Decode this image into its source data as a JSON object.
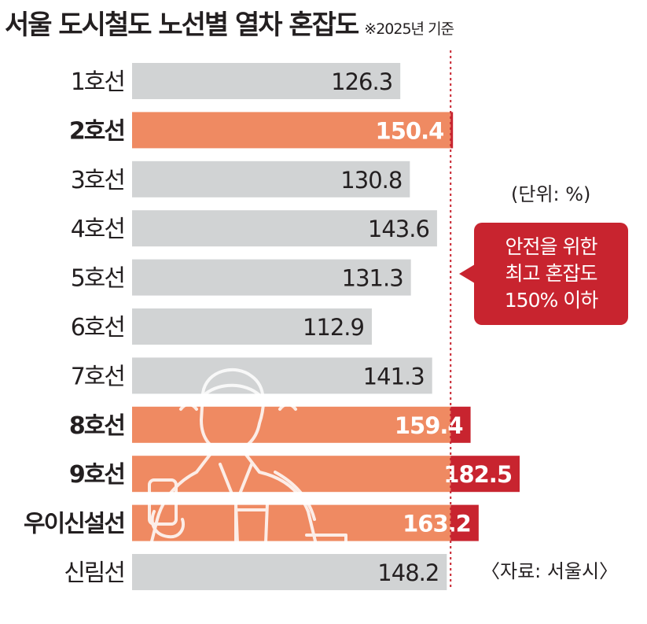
{
  "title": "서울 도시철도 노선별 열차 혼잡도",
  "subtitle": "※2025년 기준",
  "unit": "(단위: %)",
  "callout": "안전을 위한\n최고 혼잡도\n150% 이하",
  "source": "〈자료: 서울시〉",
  "colors": {
    "normal_bar": "#d1d3d4",
    "over_bar_main": "#ef8a62",
    "over_bar_excess": "#c8242f",
    "reference_line": "#c8242f",
    "callout_bg": "#c8242f"
  },
  "chart_data": {
    "type": "bar",
    "orientation": "horizontal",
    "categories": [
      "1호선",
      "2호선",
      "3호선",
      "4호선",
      "5호선",
      "6호선",
      "7호선",
      "8호선",
      "9호선",
      "우이신설선",
      "신림선"
    ],
    "values": [
      126.3,
      150.4,
      130.8,
      143.6,
      131.3,
      112.9,
      141.3,
      159.4,
      182.5,
      163.2,
      148.2
    ],
    "value_labels": [
      "126.3",
      "150.4",
      "130.8",
      "143.6",
      "131.3",
      "112.9",
      "141.3",
      "159.4",
      "182.5",
      "163.2",
      "148.2"
    ],
    "highlighted": [
      "2호선",
      "8호선",
      "9호선",
      "우이신설선"
    ],
    "reference_line": 150,
    "xlim": [
      0,
      182.5
    ],
    "grid": false,
    "legend": "none"
  }
}
